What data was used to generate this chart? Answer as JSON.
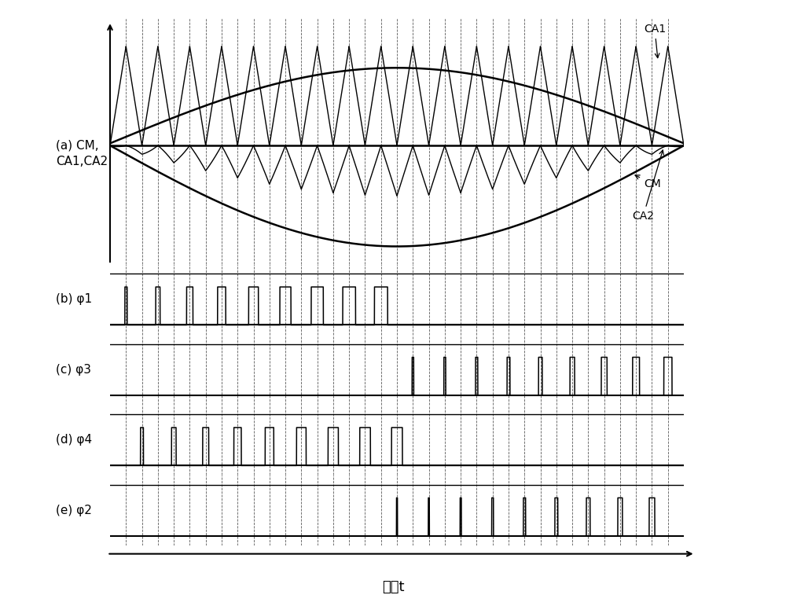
{
  "xlabel": "时间t",
  "background_color": "#ffffff",
  "n_carrier": 18,
  "panel_labels": [
    "(a) CM,\nCA1,CA2",
    "(b) φ1",
    "(c) φ3",
    "(d) φ4",
    "(e) φ2"
  ],
  "panel_heights": [
    3.5,
    1.0,
    1.0,
    1.0,
    1.0
  ],
  "annotation_CA1": "CA1",
  "annotation_CM": "CM",
  "annotation_CA2": "CA2"
}
